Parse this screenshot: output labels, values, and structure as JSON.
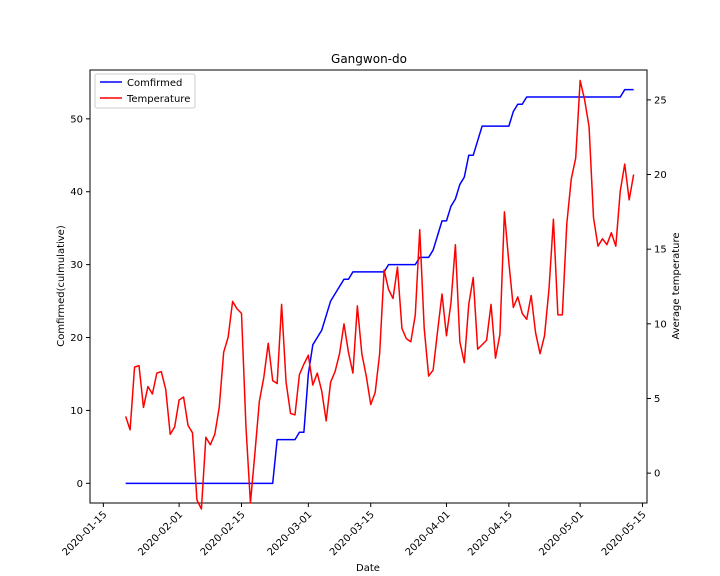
{
  "chart_data": {
    "type": "line",
    "title": "Gangwon-do",
    "xlabel": "Date",
    "ylabel_left": "Comfirmed(culmulative)",
    "ylabel_right": "Average temperature",
    "x_ticks": [
      "2020-01-15",
      "2020-02-01",
      "2020-02-15",
      "2020-03-01",
      "2020-03-15",
      "2020-04-01",
      "2020-04-15",
      "2020-05-01",
      "2020-05-15"
    ],
    "y_left_ticks": [
      0,
      10,
      20,
      30,
      40,
      50
    ],
    "y_right_ticks": [
      0,
      5,
      10,
      15,
      20,
      25
    ],
    "xlim": [
      "2020-01-12",
      "2020-05-16"
    ],
    "ylim_left": [
      -2.7,
      56.7
    ],
    "ylim_right": [
      -2.0,
      27.0
    ],
    "legend": {
      "placement": "top-left",
      "entries": [
        "Comfirmed",
        "Temperature"
      ]
    },
    "colors": {
      "confirmed": "#0000ff",
      "temperature": "#ff0000"
    },
    "series": [
      {
        "name": "Comfirmed",
        "axis": "left",
        "points": [
          [
            "2020-01-20",
            0
          ],
          [
            "2020-02-22",
            0
          ],
          [
            "2020-02-23",
            6
          ],
          [
            "2020-02-27",
            6
          ],
          [
            "2020-02-28",
            7
          ],
          [
            "2020-02-29",
            7
          ],
          [
            "2020-03-01",
            15
          ],
          [
            "2020-03-02",
            19
          ],
          [
            "2020-03-03",
            20
          ],
          [
            "2020-03-04",
            21
          ],
          [
            "2020-03-05",
            23
          ],
          [
            "2020-03-06",
            25
          ],
          [
            "2020-03-07",
            26
          ],
          [
            "2020-03-08",
            27
          ],
          [
            "2020-03-09",
            28
          ],
          [
            "2020-03-10",
            28
          ],
          [
            "2020-03-11",
            29
          ],
          [
            "2020-03-18",
            29
          ],
          [
            "2020-03-19",
            30
          ],
          [
            "2020-03-25",
            30
          ],
          [
            "2020-03-26",
            31
          ],
          [
            "2020-03-28",
            31
          ],
          [
            "2020-03-29",
            32
          ],
          [
            "2020-03-30",
            34
          ],
          [
            "2020-03-31",
            36
          ],
          [
            "2020-04-01",
            36
          ],
          [
            "2020-04-02",
            38
          ],
          [
            "2020-04-03",
            39
          ],
          [
            "2020-04-04",
            41
          ],
          [
            "2020-04-05",
            42
          ],
          [
            "2020-04-06",
            45
          ],
          [
            "2020-04-07",
            45
          ],
          [
            "2020-04-08",
            47
          ],
          [
            "2020-04-09",
            49
          ],
          [
            "2020-04-15",
            49
          ],
          [
            "2020-04-16",
            51
          ],
          [
            "2020-04-17",
            52
          ],
          [
            "2020-04-18",
            52
          ],
          [
            "2020-04-19",
            53
          ],
          [
            "2020-05-10",
            53
          ],
          [
            "2020-05-11",
            54
          ],
          [
            "2020-05-13",
            54
          ]
        ]
      },
      {
        "name": "Temperature",
        "axis": "right",
        "points": [
          [
            "2020-01-20",
            3.8
          ],
          [
            "2020-01-21",
            2.9
          ],
          [
            "2020-01-22",
            7.1
          ],
          [
            "2020-01-23",
            7.2
          ],
          [
            "2020-01-24",
            4.4
          ],
          [
            "2020-01-25",
            5.8
          ],
          [
            "2020-01-26",
            5.3
          ],
          [
            "2020-01-27",
            6.7
          ],
          [
            "2020-01-28",
            6.8
          ],
          [
            "2020-01-29",
            5.6
          ],
          [
            "2020-01-30",
            2.6
          ],
          [
            "2020-01-31",
            3.1
          ],
          [
            "2020-02-01",
            4.9
          ],
          [
            "2020-02-02",
            5.1
          ],
          [
            "2020-02-03",
            3.2
          ],
          [
            "2020-02-04",
            2.7
          ],
          [
            "2020-02-05",
            -1.8
          ],
          [
            "2020-02-06",
            -2.4
          ],
          [
            "2020-02-07",
            2.4
          ],
          [
            "2020-02-08",
            1.9
          ],
          [
            "2020-02-09",
            2.6
          ],
          [
            "2020-02-10",
            4.4
          ],
          [
            "2020-02-11",
            8.1
          ],
          [
            "2020-02-12",
            9.1
          ],
          [
            "2020-02-13",
            11.5
          ],
          [
            "2020-02-14",
            11.0
          ],
          [
            "2020-02-15",
            10.7
          ],
          [
            "2020-02-16",
            3.1
          ],
          [
            "2020-02-17",
            -2.0
          ],
          [
            "2020-02-18",
            1.3
          ],
          [
            "2020-02-19",
            4.8
          ],
          [
            "2020-02-20",
            6.4
          ],
          [
            "2020-02-21",
            8.7
          ],
          [
            "2020-02-22",
            6.2
          ],
          [
            "2020-02-23",
            6.0
          ],
          [
            "2020-02-24",
            11.3
          ],
          [
            "2020-02-25",
            6.1
          ],
          [
            "2020-02-26",
            4.0
          ],
          [
            "2020-02-27",
            3.9
          ],
          [
            "2020-02-28",
            6.6
          ],
          [
            "2020-02-29",
            7.3
          ],
          [
            "2020-03-01",
            7.9
          ],
          [
            "2020-03-02",
            5.9
          ],
          [
            "2020-03-03",
            6.7
          ],
          [
            "2020-03-04",
            5.5
          ],
          [
            "2020-03-05",
            3.5
          ],
          [
            "2020-03-06",
            6.1
          ],
          [
            "2020-03-07",
            6.8
          ],
          [
            "2020-03-08",
            8.0
          ],
          [
            "2020-03-09",
            10.0
          ],
          [
            "2020-03-10",
            8.1
          ],
          [
            "2020-03-11",
            6.7
          ],
          [
            "2020-03-12",
            11.2
          ],
          [
            "2020-03-13",
            8.0
          ],
          [
            "2020-03-14",
            6.5
          ],
          [
            "2020-03-15",
            4.6
          ],
          [
            "2020-03-16",
            5.4
          ],
          [
            "2020-03-17",
            8.0
          ],
          [
            "2020-03-18",
            13.6
          ],
          [
            "2020-03-19",
            12.3
          ],
          [
            "2020-03-20",
            11.7
          ],
          [
            "2020-03-21",
            13.8
          ],
          [
            "2020-03-22",
            9.7
          ],
          [
            "2020-03-23",
            9.0
          ],
          [
            "2020-03-24",
            8.8
          ],
          [
            "2020-03-25",
            10.6
          ],
          [
            "2020-03-26",
            16.3
          ],
          [
            "2020-03-27",
            9.7
          ],
          [
            "2020-03-28",
            6.5
          ],
          [
            "2020-03-29",
            6.9
          ],
          [
            "2020-03-30",
            9.5
          ],
          [
            "2020-03-31",
            12.0
          ],
          [
            "2020-04-01",
            9.2
          ],
          [
            "2020-04-02",
            11.4
          ],
          [
            "2020-04-03",
            15.3
          ],
          [
            "2020-04-04",
            8.8
          ],
          [
            "2020-04-05",
            7.4
          ],
          [
            "2020-04-06",
            11.3
          ],
          [
            "2020-04-07",
            13.1
          ],
          [
            "2020-04-08",
            8.3
          ],
          [
            "2020-04-09",
            8.6
          ],
          [
            "2020-04-10",
            8.9
          ],
          [
            "2020-04-11",
            11.3
          ],
          [
            "2020-04-12",
            7.7
          ],
          [
            "2020-04-13",
            9.3
          ],
          [
            "2020-04-14",
            17.5
          ],
          [
            "2020-04-15",
            14.1
          ],
          [
            "2020-04-16",
            11.1
          ],
          [
            "2020-04-17",
            11.8
          ],
          [
            "2020-04-18",
            10.7
          ],
          [
            "2020-04-19",
            10.3
          ],
          [
            "2020-04-20",
            11.9
          ],
          [
            "2020-04-21",
            9.4
          ],
          [
            "2020-04-22",
            8.0
          ],
          [
            "2020-04-23",
            9.2
          ],
          [
            "2020-04-24",
            12.3
          ],
          [
            "2020-04-25",
            17.0
          ],
          [
            "2020-04-26",
            10.6
          ],
          [
            "2020-04-27",
            10.6
          ],
          [
            "2020-04-28",
            16.7
          ],
          [
            "2020-04-29",
            19.7
          ],
          [
            "2020-04-30",
            21.1
          ],
          [
            "2020-05-01",
            26.3
          ],
          [
            "2020-05-02",
            25.0
          ],
          [
            "2020-05-03",
            23.2
          ],
          [
            "2020-05-04",
            17.1
          ],
          [
            "2020-05-05",
            15.2
          ],
          [
            "2020-05-06",
            15.7
          ],
          [
            "2020-05-07",
            15.3
          ],
          [
            "2020-05-08",
            16.1
          ],
          [
            "2020-05-09",
            15.2
          ],
          [
            "2020-05-10",
            18.9
          ],
          [
            "2020-05-11",
            20.7
          ],
          [
            "2020-05-12",
            18.3
          ],
          [
            "2020-05-13",
            20.0
          ]
        ]
      }
    ]
  }
}
